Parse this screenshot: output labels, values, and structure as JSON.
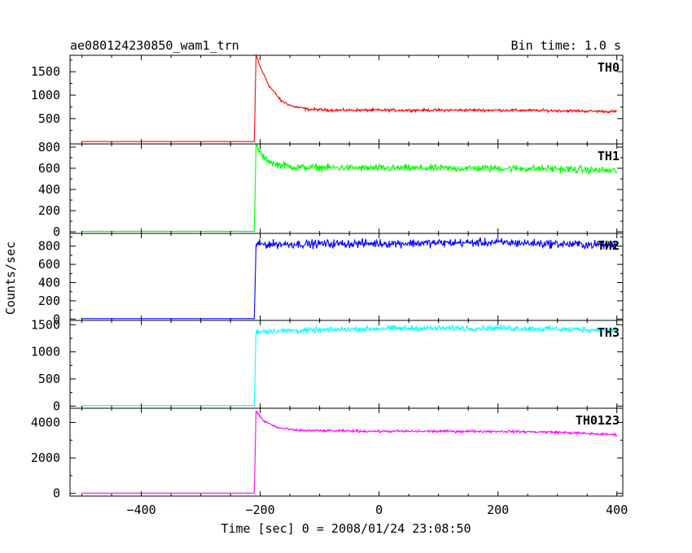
{
  "header": {
    "title": "ae080124230850_wam1_trn",
    "bin_time": "Bin time: 1.0 s"
  },
  "chart_data": {
    "type": "line",
    "xlabel": "Time [sec] 0 = 2008/01/24 23:08:50",
    "ylabel": "Counts/sec",
    "xlim": [
      -520,
      410
    ],
    "x_ticks": [
      -400,
      -200,
      0,
      200,
      400
    ],
    "x_tick_labels": [
      "−400",
      "−200",
      "0",
      "200",
      "400"
    ],
    "grid": false,
    "panels": [
      {
        "name": "TH0",
        "color": "#ff0000",
        "ylim": [
          -40,
          1850
        ],
        "y_ticks": [
          500,
          1000,
          1500
        ],
        "y_tick_labels": [
          "500",
          "1000",
          "1500"
        ],
        "profile": [
          [
            -520,
            10
          ],
          [
            -210,
            10
          ],
          [
            -207,
            1850
          ],
          [
            -200,
            1600
          ],
          [
            -185,
            1200
          ],
          [
            -165,
            880
          ],
          [
            -145,
            760
          ],
          [
            -120,
            700
          ],
          [
            -80,
            680
          ],
          [
            0,
            680
          ],
          [
            100,
            680
          ],
          [
            200,
            680
          ],
          [
            300,
            670
          ],
          [
            400,
            650
          ]
        ],
        "noise": 25
      },
      {
        "name": "TH1",
        "color": "#00ff00",
        "ylim": [
          -15,
          830
        ],
        "y_ticks": [
          0,
          200,
          400,
          600,
          800
        ],
        "y_tick_labels": [
          "0",
          "200",
          "400",
          "600",
          "800"
        ],
        "profile": [
          [
            -520,
            5
          ],
          [
            -210,
            5
          ],
          [
            -207,
            820
          ],
          [
            -195,
            700
          ],
          [
            -175,
            640
          ],
          [
            -140,
            610
          ],
          [
            0,
            600
          ],
          [
            200,
            600
          ],
          [
            300,
            595
          ],
          [
            400,
            575
          ]
        ],
        "noise": 30
      },
      {
        "name": "TH2",
        "color": "#0000ff",
        "ylim": [
          -15,
          940
        ],
        "y_ticks": [
          0,
          200,
          400,
          600,
          800
        ],
        "y_tick_labels": [
          "0",
          "200",
          "400",
          "600",
          "800"
        ],
        "profile": [
          [
            -520,
            5
          ],
          [
            -210,
            5
          ],
          [
            -207,
            820
          ],
          [
            0,
            830
          ],
          [
            200,
            840
          ],
          [
            400,
            810
          ]
        ],
        "noise": 40
      },
      {
        "name": "TH3",
        "color": "#00ffff",
        "ylim": [
          -40,
          1580
        ],
        "y_ticks": [
          0,
          500,
          1000,
          1500
        ],
        "y_tick_labels": [
          "0",
          "500",
          "1000",
          "1500"
        ],
        "profile": [
          [
            -520,
            10
          ],
          [
            -210,
            10
          ],
          [
            -207,
            1380
          ],
          [
            -100,
            1400
          ],
          [
            0,
            1430
          ],
          [
            200,
            1440
          ],
          [
            400,
            1400
          ]
        ],
        "noise": 45
      },
      {
        "name": "TH0123",
        "color": "#ff00ff",
        "ylim": [
          -150,
          4800
        ],
        "y_ticks": [
          0,
          2000,
          4000
        ],
        "y_tick_labels": [
          "0",
          "2000",
          "4000"
        ],
        "profile": [
          [
            -520,
            20
          ],
          [
            -210,
            20
          ],
          [
            -207,
            4650
          ],
          [
            -195,
            4100
          ],
          [
            -170,
            3700
          ],
          [
            -140,
            3550
          ],
          [
            0,
            3500
          ],
          [
            200,
            3500
          ],
          [
            300,
            3450
          ],
          [
            400,
            3300
          ]
        ],
        "noise": 60
      }
    ]
  }
}
